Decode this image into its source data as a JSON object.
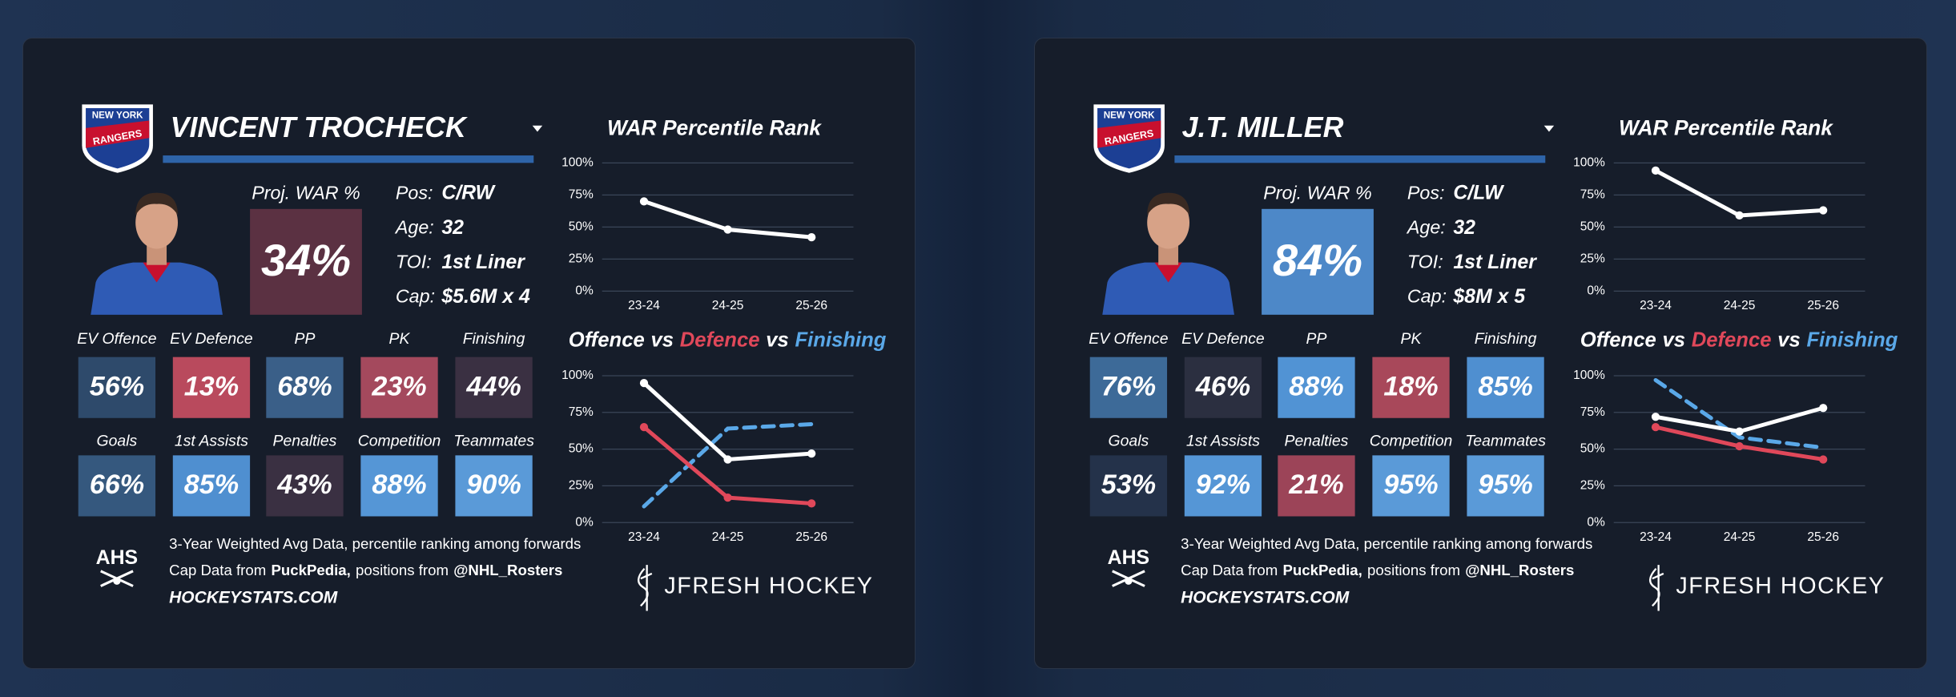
{
  "cards": [
    {
      "team_logo": [
        "NEW YORK",
        "RANGERS"
      ],
      "player": "VINCENT TROCHECK",
      "proj_war": {
        "label": "Proj. WAR %",
        "value": "34%",
        "color": "#5b3142"
      },
      "info": [
        {
          "label": "Pos:",
          "value": "C/RW"
        },
        {
          "label": "Age:",
          "value": "32"
        },
        {
          "label": "TOI:",
          "value": "1st Liner"
        },
        {
          "label": "Cap:",
          "value": "$5.6M x 4"
        }
      ],
      "tiles": [
        {
          "label": "EV Offence",
          "value": "56%",
          "color": "#2e4a6b"
        },
        {
          "label": "EV Defence",
          "value": "13%",
          "color": "#b94a5d"
        },
        {
          "label": "PP",
          "value": "68%",
          "color": "#3a5f88"
        },
        {
          "label": "PK",
          "value": "23%",
          "color": "#a4495d"
        },
        {
          "label": "Finishing",
          "value": "44%",
          "color": "#3a3042"
        },
        {
          "label": "Goals",
          "value": "66%",
          "color": "#35587e"
        },
        {
          "label": "1st Assists",
          "value": "85%",
          "color": "#4f8fd0"
        },
        {
          "label": "Penalties",
          "value": "43%",
          "color": "#3a3042"
        },
        {
          "label": "Competition",
          "value": "88%",
          "color": "#5596d6"
        },
        {
          "label": "Teammates",
          "value": "90%",
          "color": "#5a9ad8"
        }
      ],
      "footer": {
        "ahs": "AHS",
        "note": "3-Year Weighted Avg Data, percentile ranking among forwards",
        "credits": [
          "Cap Data from",
          "PuckPedia,",
          "positions from",
          "@NHL_Rosters"
        ],
        "site": "HOCKEYSTATS.COM",
        "brand": "JFRESH HOCKEY"
      },
      "war_chart": {
        "type": "line",
        "title": "WAR Percentile Rank",
        "x": [
          "23-24",
          "24-25",
          "25-26"
        ],
        "series": [
          {
            "color": "#ffffff",
            "values": [
              70,
              48,
              42
            ]
          }
        ],
        "ylim": [
          0,
          100
        ],
        "yticks": [
          {
            "value": 0,
            "label": "0%"
          },
          {
            "value": 25,
            "label": "25%"
          },
          {
            "value": 50,
            "label": "50%"
          },
          {
            "value": 75,
            "label": "75%"
          },
          {
            "value": 100,
            "label": "100%"
          }
        ]
      },
      "components_chart": {
        "type": "line",
        "title_separator": "vs",
        "x": [
          "23-24",
          "24-25",
          "25-26"
        ],
        "series": [
          {
            "name": "Offence",
            "color": "#ffffff",
            "dashed": false,
            "values": [
              95,
              43,
              47
            ]
          },
          {
            "name": "Defence",
            "color": "#e0485a",
            "dashed": false,
            "values": [
              65,
              17,
              13
            ]
          },
          {
            "name": "Finishing",
            "color": "#5aa8e8",
            "dashed": true,
            "values": [
              11,
              64,
              67
            ]
          }
        ],
        "ylim": [
          0,
          100
        ],
        "yticks": [
          {
            "value": 0,
            "label": "0%"
          },
          {
            "value": 25,
            "label": "25%"
          },
          {
            "value": 50,
            "label": "50%"
          },
          {
            "value": 75,
            "label": "75%"
          },
          {
            "value": 100,
            "label": "100%"
          }
        ]
      }
    },
    {
      "team_logo": [
        "NEW YORK",
        "RANGERS"
      ],
      "player": "J.T. MILLER",
      "proj_war": {
        "label": "Proj. WAR %",
        "value": "84%",
        "color": "#4d88c8"
      },
      "info": [
        {
          "label": "Pos:",
          "value": "C/LW"
        },
        {
          "label": "Age:",
          "value": "32"
        },
        {
          "label": "TOI:",
          "value": "1st Liner"
        },
        {
          "label": "Cap:",
          "value": "$8M x 5"
        }
      ],
      "tiles": [
        {
          "label": "EV Offence",
          "value": "76%",
          "color": "#3d6a98"
        },
        {
          "label": "EV Defence",
          "value": "46%",
          "color": "#2b2f40"
        },
        {
          "label": "PP",
          "value": "88%",
          "color": "#5193d4"
        },
        {
          "label": "PK",
          "value": "18%",
          "color": "#a8485a"
        },
        {
          "label": "Finishing",
          "value": "85%",
          "color": "#4f8fd0"
        },
        {
          "label": "Goals",
          "value": "53%",
          "color": "#24324a"
        },
        {
          "label": "1st Assists",
          "value": "92%",
          "color": "#5596d6"
        },
        {
          "label": "Penalties",
          "value": "21%",
          "color": "#9c4458"
        },
        {
          "label": "Competition",
          "value": "95%",
          "color": "#5a9ad8"
        },
        {
          "label": "Teammates",
          "value": "95%",
          "color": "#5a9ad8"
        }
      ],
      "footer": {
        "ahs": "AHS",
        "note": "3-Year Weighted Avg Data, percentile ranking among forwards",
        "credits": [
          "Cap Data from",
          "PuckPedia,",
          "positions from",
          "@NHL_Rosters"
        ],
        "site": "HOCKEYSTATS.COM",
        "brand": "JFRESH HOCKEY"
      },
      "war_chart": {
        "type": "line",
        "title": "WAR Percentile Rank",
        "x": [
          "23-24",
          "24-25",
          "25-26"
        ],
        "series": [
          {
            "color": "#ffffff",
            "values": [
              94,
              59,
              63
            ]
          }
        ],
        "ylim": [
          0,
          100
        ],
        "yticks": [
          {
            "value": 0,
            "label": "0%"
          },
          {
            "value": 25,
            "label": "25%"
          },
          {
            "value": 50,
            "label": "50%"
          },
          {
            "value": 75,
            "label": "75%"
          },
          {
            "value": 100,
            "label": "100%"
          }
        ]
      },
      "components_chart": {
        "type": "line",
        "title_separator": "vs",
        "x": [
          "23-24",
          "24-25",
          "25-26"
        ],
        "series": [
          {
            "name": "Offence",
            "color": "#ffffff",
            "dashed": false,
            "values": [
              72,
              62,
              78
            ]
          },
          {
            "name": "Defence",
            "color": "#e0485a",
            "dashed": false,
            "values": [
              65,
              52,
              43
            ]
          },
          {
            "name": "Finishing",
            "color": "#5aa8e8",
            "dashed": true,
            "values": [
              97,
              58,
              51
            ]
          }
        ],
        "ylim": [
          0,
          100
        ],
        "yticks": [
          {
            "value": 0,
            "label": "0%"
          },
          {
            "value": 25,
            "label": "25%"
          },
          {
            "value": 50,
            "label": "50%"
          },
          {
            "value": 75,
            "label": "75%"
          },
          {
            "value": 100,
            "label": "100%"
          }
        ]
      }
    }
  ]
}
